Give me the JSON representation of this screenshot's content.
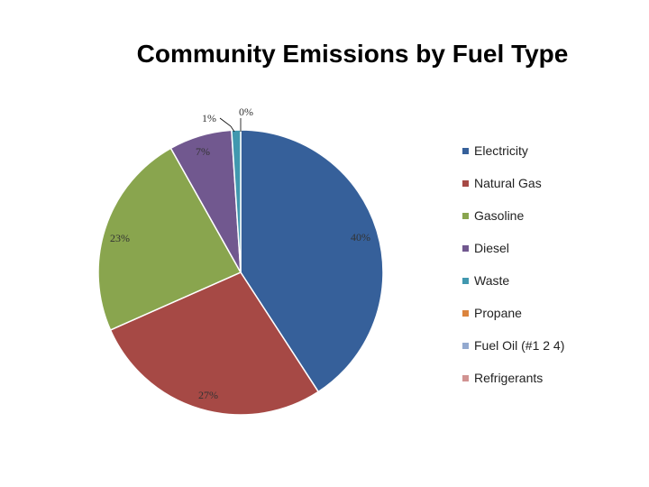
{
  "chart_data": {
    "type": "pie",
    "title": "Community Emissions by Fuel Type",
    "categories": [
      "Electricity",
      "Natural Gas",
      "Gasoline",
      "Diesel",
      "Waste",
      "Propane",
      "Fuel Oil (#1 2 4)",
      "Refrigerants"
    ],
    "values": [
      40,
      27,
      23,
      7,
      1,
      0,
      0,
      0
    ],
    "value_labels": [
      "40%",
      "27%",
      "23%",
      "7%",
      "1%",
      "0%",
      "",
      ""
    ],
    "colors": [
      "#36609A",
      "#A64945",
      "#89A54E",
      "#71588F",
      "#4198AF",
      "#DB843D",
      "#93A9CF",
      "#D19392"
    ],
    "legend_position": "right"
  }
}
